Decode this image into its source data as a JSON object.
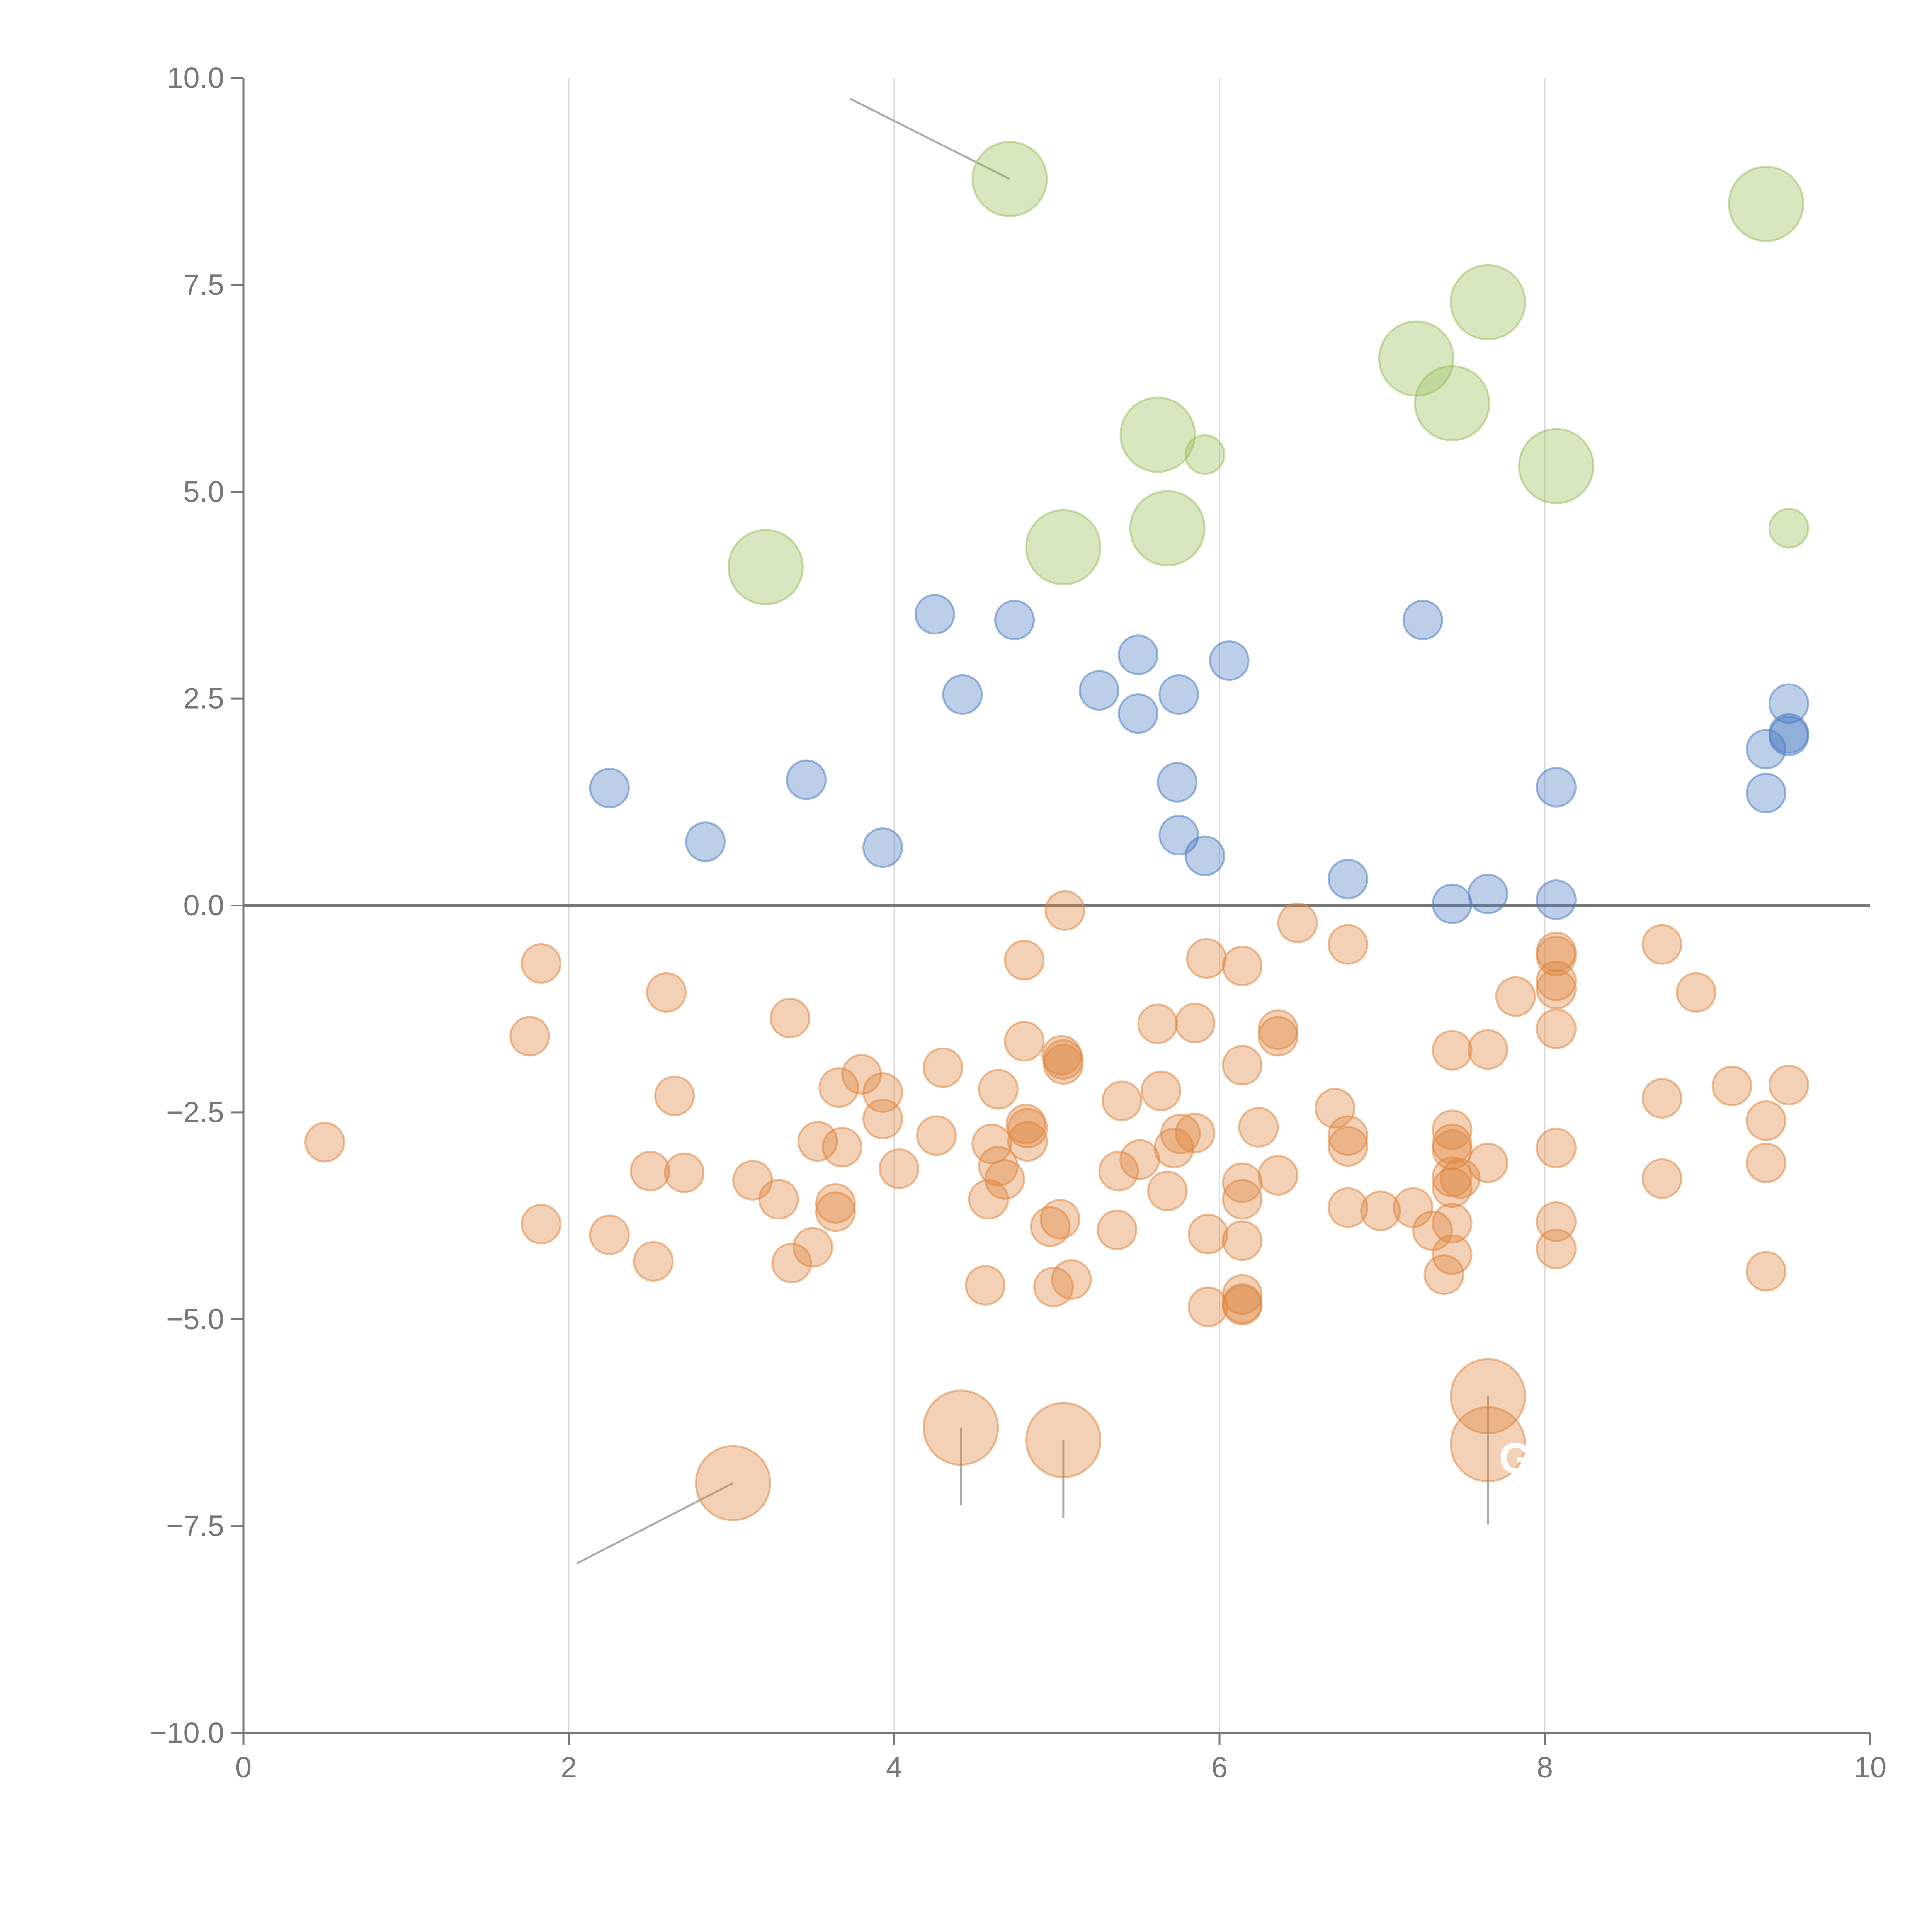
{
  "colors": {
    "blue": "#4f7fc2",
    "orange": "#e0873f",
    "green": "#9cc05c",
    "axis": "#777777",
    "grid": "#d9d9d9",
    "callout": "#aaaaaa"
  },
  "chart_data": {
    "type": "scatter",
    "title": "",
    "xlabel": "",
    "ylabel": "",
    "xlim": [
      0,
      10
    ],
    "ylim": [
      -10,
      10
    ],
    "x_ticks": [
      {
        "value": 0,
        "label": "0"
      },
      {
        "value": 2,
        "label": "2"
      },
      {
        "value": 4,
        "label": "4"
      },
      {
        "value": 6,
        "label": "6"
      },
      {
        "value": 8,
        "label": "8"
      },
      {
        "value": 10,
        "label": "10"
      }
    ],
    "y_ticks": [
      {
        "value": 10,
        "label": "10.0"
      },
      {
        "value": 7.5,
        "label": "7.5"
      },
      {
        "value": 5,
        "label": "5.0"
      },
      {
        "value": 2.5,
        "label": "2.5"
      },
      {
        "value": 0,
        "label": "0.0"
      },
      {
        "value": -2.5,
        "label": "−2.5"
      },
      {
        "value": -5,
        "label": "−5.0"
      },
      {
        "value": -7.5,
        "label": "−7.5"
      },
      {
        "value": -10,
        "label": "−10.0"
      }
    ],
    "vertical_gridlines": [
      2,
      4,
      6,
      8
    ],
    "zero_line": 0,
    "legend": "none",
    "series": [
      {
        "name": "blue",
        "color_key": "blue",
        "size": "small",
        "points": [
          {
            "x": 2.25,
            "y": 1.42
          },
          {
            "x": 2.84,
            "y": 0.77
          },
          {
            "x": 3.46,
            "y": 1.52
          },
          {
            "x": 3.93,
            "y": 0.7
          },
          {
            "x": 4.25,
            "y": 3.52
          },
          {
            "x": 4.42,
            "y": 2.55
          },
          {
            "x": 4.74,
            "y": 3.45
          },
          {
            "x": 5.26,
            "y": 2.6
          },
          {
            "x": 5.5,
            "y": 3.03
          },
          {
            "x": 5.5,
            "y": 2.32
          },
          {
            "x": 5.75,
            "y": 2.55
          },
          {
            "x": 5.74,
            "y": 1.49
          },
          {
            "x": 5.75,
            "y": 0.85
          },
          {
            "x": 5.91,
            "y": 0.6
          },
          {
            "x": 6.06,
            "y": 2.96
          },
          {
            "x": 6.79,
            "y": 0.32
          },
          {
            "x": 7.25,
            "y": 3.45
          },
          {
            "x": 7.43,
            "y": 0.02
          },
          {
            "x": 7.65,
            "y": 0.14
          },
          {
            "x": 8.07,
            "y": 1.43
          },
          {
            "x": 8.07,
            "y": 0.07
          },
          {
            "x": 9.36,
            "y": 1.89
          },
          {
            "x": 9.36,
            "y": 1.36
          },
          {
            "x": 9.5,
            "y": 2.44
          },
          {
            "x": 9.5,
            "y": 2.05
          },
          {
            "x": 9.5,
            "y": 2.08
          }
        ]
      },
      {
        "name": "orange",
        "color_key": "orange",
        "size": "small",
        "points": [
          {
            "x": 0.5,
            "y": -2.86
          },
          {
            "x": 1.76,
            "y": -1.58
          },
          {
            "x": 1.83,
            "y": -0.7
          },
          {
            "x": 1.83,
            "y": -3.85
          },
          {
            "x": 2.25,
            "y": -3.98
          },
          {
            "x": 2.5,
            "y": -3.21
          },
          {
            "x": 2.52,
            "y": -4.3
          },
          {
            "x": 2.6,
            "y": -1.05
          },
          {
            "x": 2.65,
            "y": -2.3
          },
          {
            "x": 2.71,
            "y": -3.23
          },
          {
            "x": 3.13,
            "y": -3.32
          },
          {
            "x": 3.29,
            "y": -3.55
          },
          {
            "x": 3.36,
            "y": -1.36
          },
          {
            "x": 3.37,
            "y": -4.32
          },
          {
            "x": 3.5,
            "y": -4.13
          },
          {
            "x": 3.53,
            "y": -2.85
          },
          {
            "x": 3.64,
            "y": -3.6
          },
          {
            "x": 3.64,
            "y": -3.7
          },
          {
            "x": 3.66,
            "y": -2.2
          },
          {
            "x": 3.68,
            "y": -2.92
          },
          {
            "x": 3.8,
            "y": -2.04
          },
          {
            "x": 3.93,
            "y": -2.26
          },
          {
            "x": 3.93,
            "y": -2.58
          },
          {
            "x": 4.03,
            "y": -3.18
          },
          {
            "x": 4.26,
            "y": -2.78
          },
          {
            "x": 4.3,
            "y": -1.96
          },
          {
            "x": 4.56,
            "y": -4.59
          },
          {
            "x": 4.58,
            "y": -3.55
          },
          {
            "x": 4.6,
            "y": -2.88
          },
          {
            "x": 4.64,
            "y": -2.22
          },
          {
            "x": 4.64,
            "y": -3.15
          },
          {
            "x": 4.68,
            "y": -3.31
          },
          {
            "x": 4.8,
            "y": -0.66
          },
          {
            "x": 4.8,
            "y": -1.64
          },
          {
            "x": 4.81,
            "y": -2.64
          },
          {
            "x": 4.82,
            "y": -2.69
          },
          {
            "x": 4.82,
            "y": -2.85
          },
          {
            "x": 4.96,
            "y": -3.88
          },
          {
            "x": 4.98,
            "y": -4.61
          },
          {
            "x": 5.02,
            "y": -3.79
          },
          {
            "x": 5.03,
            "y": -1.81
          },
          {
            "x": 5.04,
            "y": -1.92
          },
          {
            "x": 5.04,
            "y": -1.86
          },
          {
            "x": 5.05,
            "y": -0.06
          },
          {
            "x": 5.09,
            "y": -4.52
          },
          {
            "x": 5.37,
            "y": -3.92
          },
          {
            "x": 5.38,
            "y": -3.21
          },
          {
            "x": 5.4,
            "y": -2.36
          },
          {
            "x": 5.51,
            "y": -3.07
          },
          {
            "x": 5.62,
            "y": -1.43
          },
          {
            "x": 5.64,
            "y": -2.24
          },
          {
            "x": 5.68,
            "y": -3.45
          },
          {
            "x": 5.72,
            "y": -2.93
          },
          {
            "x": 5.76,
            "y": -2.76
          },
          {
            "x": 5.85,
            "y": -1.42
          },
          {
            "x": 5.85,
            "y": -2.75
          },
          {
            "x": 5.92,
            "y": -0.64
          },
          {
            "x": 5.93,
            "y": -3.97
          },
          {
            "x": 5.93,
            "y": -4.85
          },
          {
            "x": 6.14,
            "y": -0.73
          },
          {
            "x": 6.14,
            "y": -1.93
          },
          {
            "x": 6.14,
            "y": -3.35
          },
          {
            "x": 6.14,
            "y": -3.55
          },
          {
            "x": 6.14,
            "y": -4.05
          },
          {
            "x": 6.14,
            "y": -4.7
          },
          {
            "x": 6.14,
            "y": -4.83
          },
          {
            "x": 6.14,
            "y": -4.81
          },
          {
            "x": 6.24,
            "y": -2.68
          },
          {
            "x": 6.36,
            "y": -1.5
          },
          {
            "x": 6.36,
            "y": -1.58
          },
          {
            "x": 6.36,
            "y": -3.26
          },
          {
            "x": 6.48,
            "y": -0.21
          },
          {
            "x": 6.71,
            "y": -2.45
          },
          {
            "x": 6.79,
            "y": -0.47
          },
          {
            "x": 6.79,
            "y": -2.78
          },
          {
            "x": 6.79,
            "y": -2.91
          },
          {
            "x": 6.79,
            "y": -3.65
          },
          {
            "x": 6.99,
            "y": -3.69
          },
          {
            "x": 7.19,
            "y": -3.65
          },
          {
            "x": 7.31,
            "y": -3.93
          },
          {
            "x": 7.38,
            "y": -4.46
          },
          {
            "x": 7.43,
            "y": -1.75
          },
          {
            "x": 7.43,
            "y": -2.71
          },
          {
            "x": 7.43,
            "y": -2.88
          },
          {
            "x": 7.43,
            "y": -2.95
          },
          {
            "x": 7.43,
            "y": -3.28
          },
          {
            "x": 7.43,
            "y": -3.41
          },
          {
            "x": 7.43,
            "y": -3.84
          },
          {
            "x": 7.43,
            "y": -4.22
          },
          {
            "x": 7.48,
            "y": -3.3
          },
          {
            "x": 7.65,
            "y": -1.74
          },
          {
            "x": 7.65,
            "y": -3.11
          },
          {
            "x": 7.82,
            "y": -1.1
          },
          {
            "x": 8.07,
            "y": -0.56
          },
          {
            "x": 8.07,
            "y": -0.61
          },
          {
            "x": 8.07,
            "y": -0.91
          },
          {
            "x": 8.07,
            "y": -1.01
          },
          {
            "x": 8.07,
            "y": -1.49
          },
          {
            "x": 8.07,
            "y": -2.93
          },
          {
            "x": 8.07,
            "y": -3.82
          },
          {
            "x": 8.07,
            "y": -4.15
          },
          {
            "x": 8.72,
            "y": -0.47
          },
          {
            "x": 8.72,
            "y": -2.33
          },
          {
            "x": 8.72,
            "y": -3.3
          },
          {
            "x": 8.93,
            "y": -1.05
          },
          {
            "x": 9.15,
            "y": -2.18
          },
          {
            "x": 9.36,
            "y": -2.6
          },
          {
            "x": 9.36,
            "y": -3.11
          },
          {
            "x": 9.36,
            "y": -4.42
          },
          {
            "x": 9.5,
            "y": -2.17
          }
        ]
      },
      {
        "name": "orange-large",
        "color_key": "orange",
        "size": "large",
        "points": [
          {
            "x": 3.01,
            "y": -6.98
          },
          {
            "x": 4.41,
            "y": -6.31
          },
          {
            "x": 5.04,
            "y": -6.46
          },
          {
            "x": 7.65,
            "y": -5.93
          },
          {
            "x": 7.65,
            "y": -6.51
          }
        ]
      },
      {
        "name": "green",
        "color_key": "green",
        "size": "large",
        "points": [
          {
            "x": 4.71,
            "y": 8.78
          },
          {
            "x": 3.21,
            "y": 4.09
          },
          {
            "x": 5.04,
            "y": 4.33
          },
          {
            "x": 5.62,
            "y": 5.69
          },
          {
            "x": 5.68,
            "y": 4.56
          },
          {
            "x": 7.21,
            "y": 6.61
          },
          {
            "x": 7.43,
            "y": 6.07
          },
          {
            "x": 7.65,
            "y": 7.29
          },
          {
            "x": 8.07,
            "y": 5.31
          },
          {
            "x": 9.36,
            "y": 8.48
          }
        ]
      },
      {
        "name": "green-small",
        "color_key": "green",
        "size": "small",
        "points": [
          {
            "x": 5.91,
            "y": 5.45
          },
          {
            "x": 9.5,
            "y": 4.56
          }
        ]
      }
    ],
    "callouts": [
      {
        "from": [
          4.71,
          8.78
        ],
        "to": [
          3.73,
          9.75
        ],
        "color_key": "callout"
      },
      {
        "from": [
          3.01,
          -6.98
        ],
        "to": [
          2.05,
          -7.95
        ],
        "color_key": "callout"
      },
      {
        "from": [
          4.41,
          -6.31
        ],
        "to": [
          4.41,
          -7.25
        ],
        "color_key": "callout"
      },
      {
        "from": [
          5.04,
          -6.46
        ],
        "to": [
          5.04,
          -7.4
        ],
        "color_key": "callout"
      },
      {
        "from": [
          7.65,
          -5.93
        ],
        "to": [
          7.65,
          -7.48
        ],
        "color_key": "callout"
      }
    ],
    "point_labels": [
      {
        "text": "G",
        "x": 7.82,
        "y": -6.68
      }
    ]
  }
}
